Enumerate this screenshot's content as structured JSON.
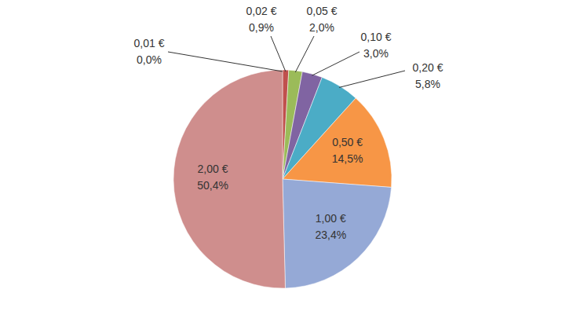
{
  "chart_data": {
    "type": "pie",
    "categories": [
      "0,01 €",
      "0,02 €",
      "0,05 €",
      "0,10 €",
      "0,20 €",
      "0,50 €",
      "1,00 €",
      "2,00 €"
    ],
    "values": [
      0.0,
      0.9,
      2.0,
      3.0,
      5.8,
      14.5,
      23.4,
      50.4
    ],
    "value_labels": [
      "0,0%",
      "0,9%",
      "2,0%",
      "3,0%",
      "5,8%",
      "14,5%",
      "23,4%",
      "50,4%"
    ],
    "colors": [
      "#4f81bd",
      "#c0504d",
      "#9bbb59",
      "#8064a2",
      "#4bacc6",
      "#f79646",
      "#95a9d6",
      "#cf8e8d"
    ],
    "data_labels": true
  }
}
